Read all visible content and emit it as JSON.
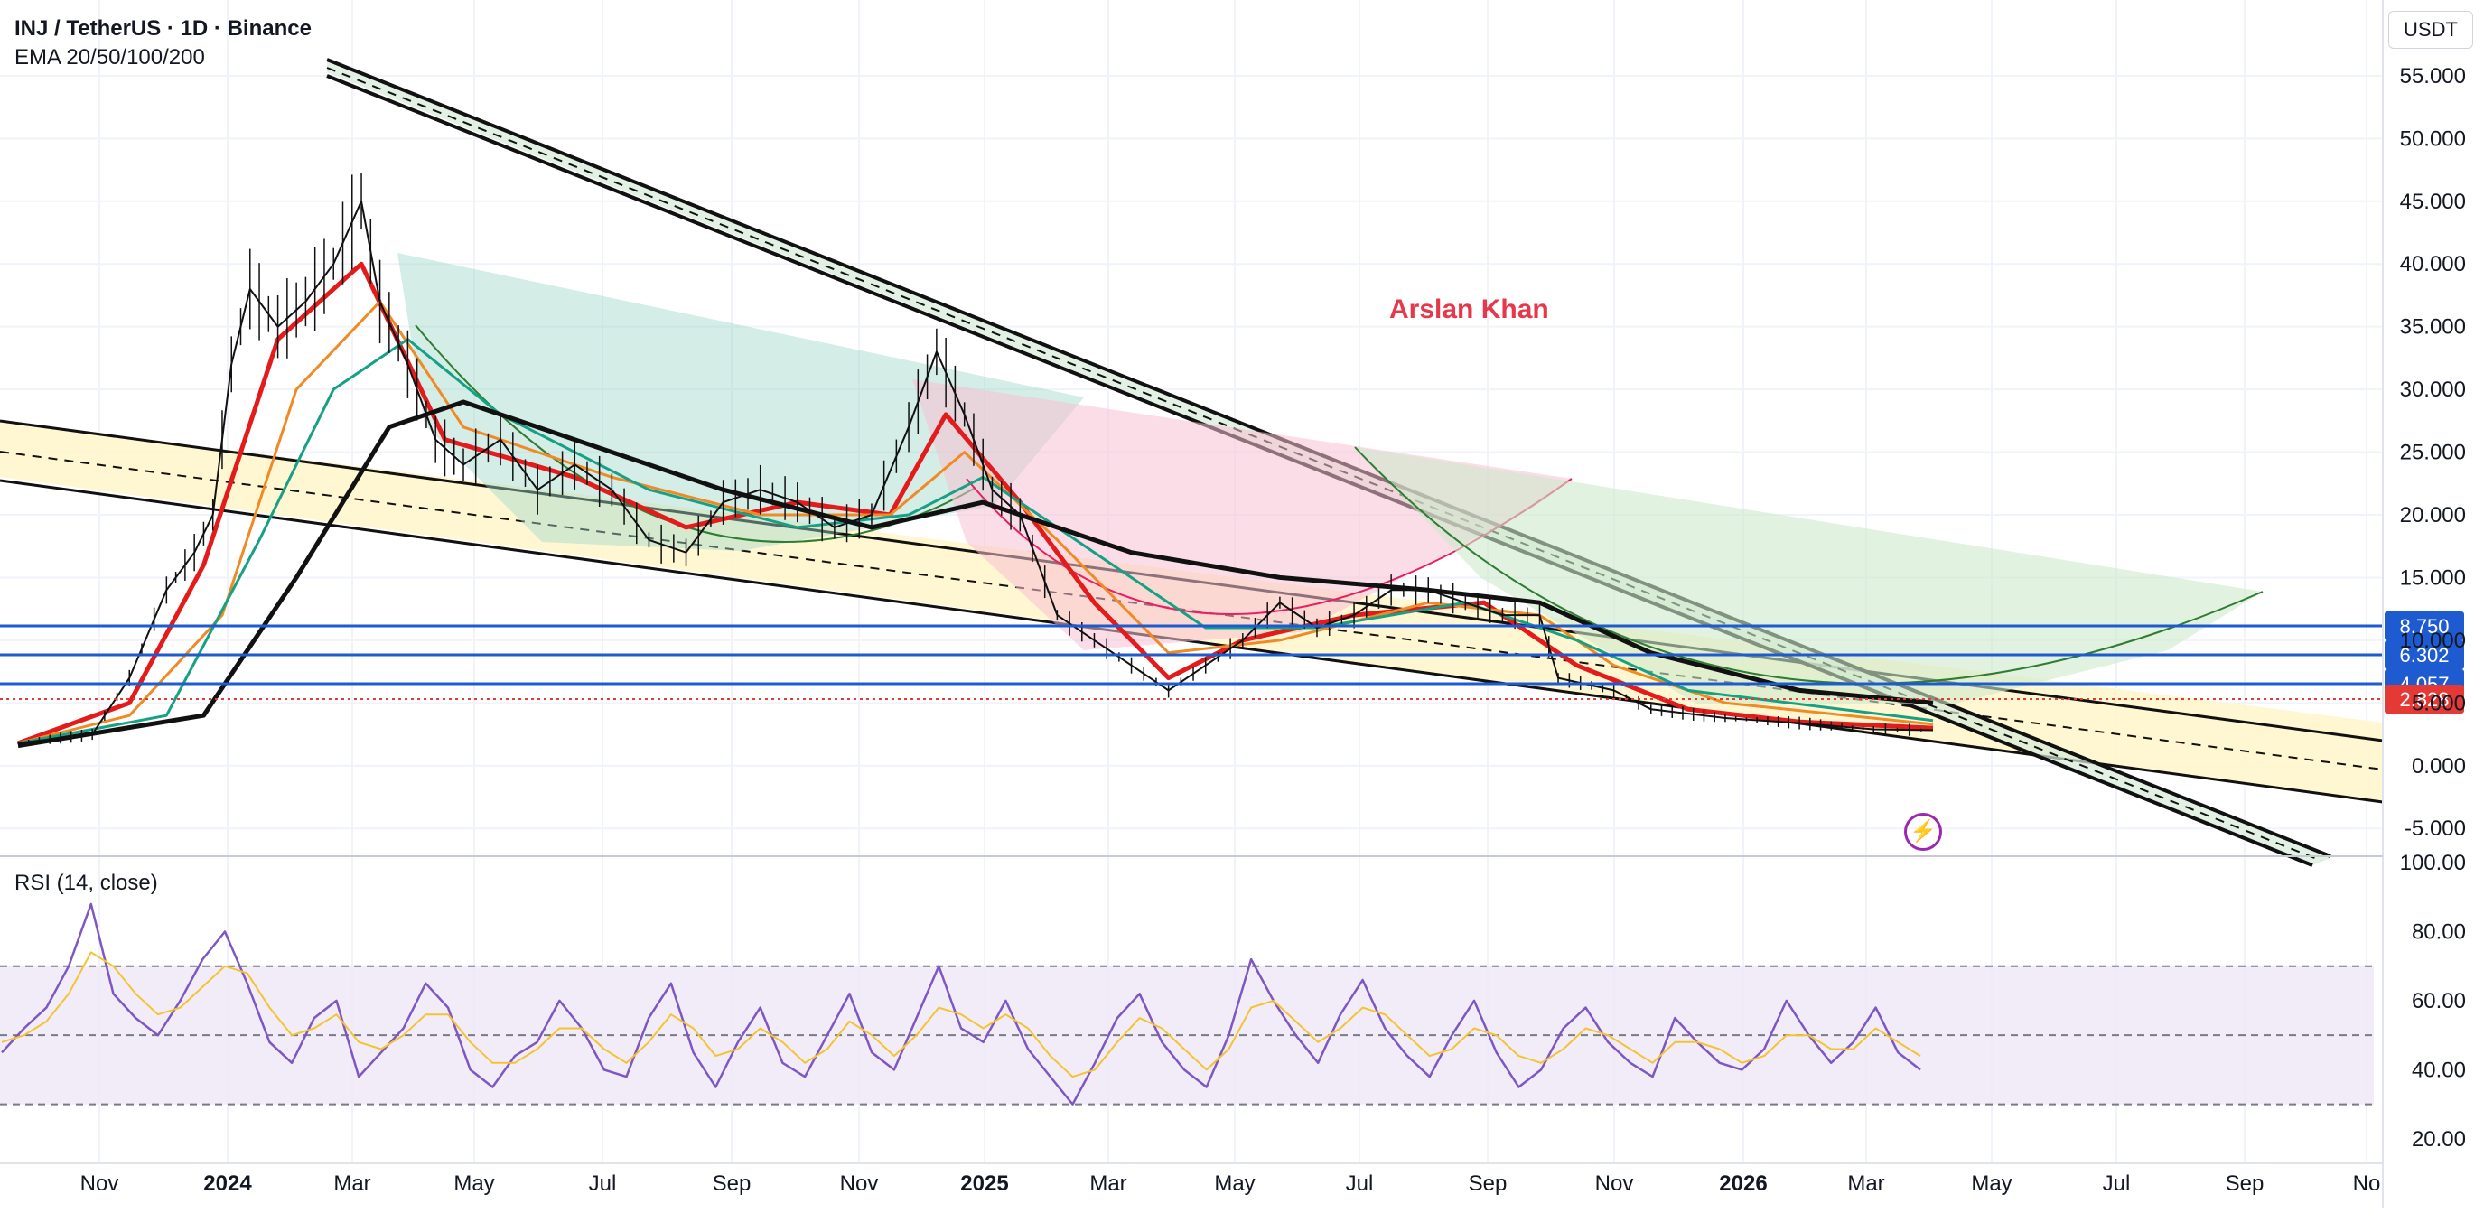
{
  "header": {
    "symbol_line": "INJ / TetherUS · 1D · Binance",
    "indicator_line": "EMA 20/50/100/200"
  },
  "currency": "USDT",
  "watermark": "Arslan Khan",
  "rsi_label": "RSI (14, close)",
  "colors": {
    "ema20": "#e31b1b",
    "ema50": "#f08a24",
    "ema100": "#16a085",
    "ema200": "#111111",
    "level_line": "#1e5bd1",
    "price_badge": "#e53935",
    "rsi_line": "#7e57c2",
    "rsi_ma": "#f4c430",
    "rsi_band": "#ede7f6",
    "channel_fill": "#fff6cc",
    "wedge_green": "#9fd8c8",
    "wedge_pink": "#f8c1d3"
  },
  "icons": {
    "flash": "lightning-icon"
  },
  "chart_data": [
    {
      "type": "candlestick",
      "title": "INJ / TetherUS · 1D · Binance",
      "ylim": [
        -7,
        56
      ],
      "y_ticks": [
        "-5.000",
        "0.000",
        "5.000",
        "10.000",
        "15.000",
        "20.000",
        "25.000",
        "30.000",
        "35.000",
        "40.000",
        "45.000",
        "50.000",
        "55.000"
      ],
      "x_ticks": [
        "Nov",
        "2024",
        "Mar",
        "May",
        "Jul",
        "Sep",
        "Nov",
        "2025",
        "Mar",
        "May",
        "Jul",
        "Sep",
        "Nov",
        "2026",
        "Mar",
        "May",
        "Jul",
        "Sep",
        "No"
      ],
      "price_path": [
        [
          0,
          1.8
        ],
        [
          40,
          2.5
        ],
        [
          60,
          7
        ],
        [
          80,
          14
        ],
        [
          95,
          17
        ],
        [
          105,
          20
        ],
        [
          115,
          32
        ],
        [
          125,
          38
        ],
        [
          140,
          35
        ],
        [
          155,
          37
        ],
        [
          170,
          40
        ],
        [
          185,
          45
        ],
        [
          195,
          37
        ],
        [
          210,
          32
        ],
        [
          225,
          26
        ],
        [
          240,
          24
        ],
        [
          260,
          26
        ],
        [
          280,
          22
        ],
        [
          300,
          24
        ],
        [
          320,
          22
        ],
        [
          340,
          18
        ],
        [
          360,
          17
        ],
        [
          380,
          21
        ],
        [
          400,
          22
        ],
        [
          420,
          21
        ],
        [
          440,
          19
        ],
        [
          460,
          20
        ],
        [
          480,
          27
        ],
        [
          495,
          33
        ],
        [
          510,
          28
        ],
        [
          525,
          22
        ],
        [
          540,
          20
        ],
        [
          560,
          12
        ],
        [
          580,
          10
        ],
        [
          600,
          8
        ],
        [
          620,
          6
        ],
        [
          640,
          8
        ],
        [
          660,
          10
        ],
        [
          680,
          13
        ],
        [
          700,
          11
        ],
        [
          720,
          12
        ],
        [
          740,
          14
        ],
        [
          760,
          14
        ],
        [
          780,
          13
        ],
        [
          800,
          12
        ],
        [
          820,
          12
        ],
        [
          830,
          7
        ],
        [
          860,
          6
        ],
        [
          880,
          4.5
        ],
        [
          920,
          3.8
        ],
        [
          960,
          3.4
        ],
        [
          1000,
          2.9
        ],
        [
          1032,
          2.83
        ]
      ],
      "ema_series": [
        {
          "name": "EMA 20",
          "points": [
            [
              0,
              1.8
            ],
            [
              60,
              5
            ],
            [
              100,
              16
            ],
            [
              140,
              34
            ],
            [
              185,
              40
            ],
            [
              230,
              26
            ],
            [
              300,
              23
            ],
            [
              360,
              19
            ],
            [
              420,
              21
            ],
            [
              470,
              20
            ],
            [
              500,
              28
            ],
            [
              540,
              21
            ],
            [
              580,
              13
            ],
            [
              620,
              7
            ],
            [
              660,
              10
            ],
            [
              720,
              12
            ],
            [
              790,
              13
            ],
            [
              840,
              8
            ],
            [
              900,
              4.5
            ],
            [
              960,
              3.5
            ],
            [
              1032,
              3.0
            ]
          ]
        },
        {
          "name": "EMA 50",
          "points": [
            [
              0,
              1.8
            ],
            [
              60,
              4
            ],
            [
              110,
              12
            ],
            [
              150,
              30
            ],
            [
              195,
              37
            ],
            [
              240,
              27
            ],
            [
              320,
              23
            ],
            [
              400,
              20
            ],
            [
              470,
              20
            ],
            [
              510,
              25
            ],
            [
              560,
              18
            ],
            [
              620,
              9
            ],
            [
              680,
              10
            ],
            [
              760,
              13
            ],
            [
              820,
              12
            ],
            [
              860,
              8
            ],
            [
              920,
              5
            ],
            [
              1032,
              3.3
            ]
          ]
        },
        {
          "name": "EMA 100",
          "points": [
            [
              0,
              1.8
            ],
            [
              80,
              4
            ],
            [
              130,
              18
            ],
            [
              170,
              30
            ],
            [
              210,
              34
            ],
            [
              260,
              28
            ],
            [
              340,
              22
            ],
            [
              420,
              19
            ],
            [
              480,
              20
            ],
            [
              520,
              23
            ],
            [
              580,
              17
            ],
            [
              640,
              11
            ],
            [
              700,
              11
            ],
            [
              780,
              13
            ],
            [
              840,
              10
            ],
            [
              900,
              6
            ],
            [
              1032,
              3.6
            ]
          ]
        },
        {
          "name": "EMA 200",
          "points": [
            [
              0,
              1.6
            ],
            [
              100,
              4
            ],
            [
              150,
              15
            ],
            [
              200,
              27
            ],
            [
              240,
              29
            ],
            [
              300,
              26
            ],
            [
              380,
              22
            ],
            [
              460,
              19
            ],
            [
              520,
              21
            ],
            [
              600,
              17
            ],
            [
              680,
              15
            ],
            [
              760,
              14
            ],
            [
              820,
              13
            ],
            [
              880,
              9
            ],
            [
              960,
              6
            ],
            [
              1032,
              5
            ]
          ]
        }
      ],
      "levels": [
        {
          "label": "8.750",
          "value": 8.75
        },
        {
          "label": "6.302",
          "value": 6.302
        },
        {
          "label": "4.057",
          "value": 4.057
        }
      ],
      "last_price": {
        "label": "2.828",
        "value": 2.828
      }
    },
    {
      "type": "line",
      "title": "RSI (14, close)",
      "ylim": [
        15,
        100
      ],
      "y_ticks": [
        "20.00",
        "40.00",
        "60.00",
        "80.00",
        "100.00"
      ],
      "bands": [
        30,
        50,
        70
      ],
      "series": [
        {
          "name": "RSI",
          "values": [
            45,
            52,
            58,
            70,
            88,
            62,
            55,
            50,
            60,
            72,
            80,
            65,
            48,
            42,
            55,
            60,
            38,
            45,
            52,
            65,
            58,
            40,
            35,
            44,
            48,
            60,
            52,
            40,
            38,
            55,
            65,
            45,
            35,
            48,
            58,
            42,
            38,
            50,
            62,
            45,
            40,
            55,
            70,
            52,
            48,
            60,
            46,
            38,
            30,
            42,
            55,
            62,
            48,
            40,
            35,
            50,
            72,
            60,
            50,
            42,
            56,
            66,
            52,
            44,
            38,
            50,
            60,
            45,
            35,
            40,
            52,
            58,
            48,
            42,
            38,
            55,
            48,
            42,
            40,
            46,
            60,
            50,
            42,
            48,
            58,
            45,
            40
          ]
        },
        {
          "name": "RSI MA",
          "values": [
            48,
            50,
            54,
            62,
            74,
            70,
            62,
            56,
            58,
            64,
            70,
            68,
            58,
            50,
            52,
            56,
            48,
            46,
            50,
            56,
            56,
            48,
            42,
            42,
            46,
            52,
            52,
            46,
            42,
            48,
            56,
            52,
            44,
            46,
            52,
            48,
            42,
            46,
            54,
            50,
            44,
            50,
            58,
            56,
            52,
            56,
            52,
            44,
            38,
            40,
            48,
            55,
            52,
            46,
            40,
            46,
            58,
            60,
            54,
            48,
            52,
            58,
            56,
            50,
            44,
            46,
            52,
            50,
            44,
            42,
            46,
            52,
            50,
            46,
            42,
            48,
            48,
            46,
            42,
            44,
            50,
            50,
            46,
            46,
            52,
            48,
            44
          ]
        }
      ]
    }
  ]
}
